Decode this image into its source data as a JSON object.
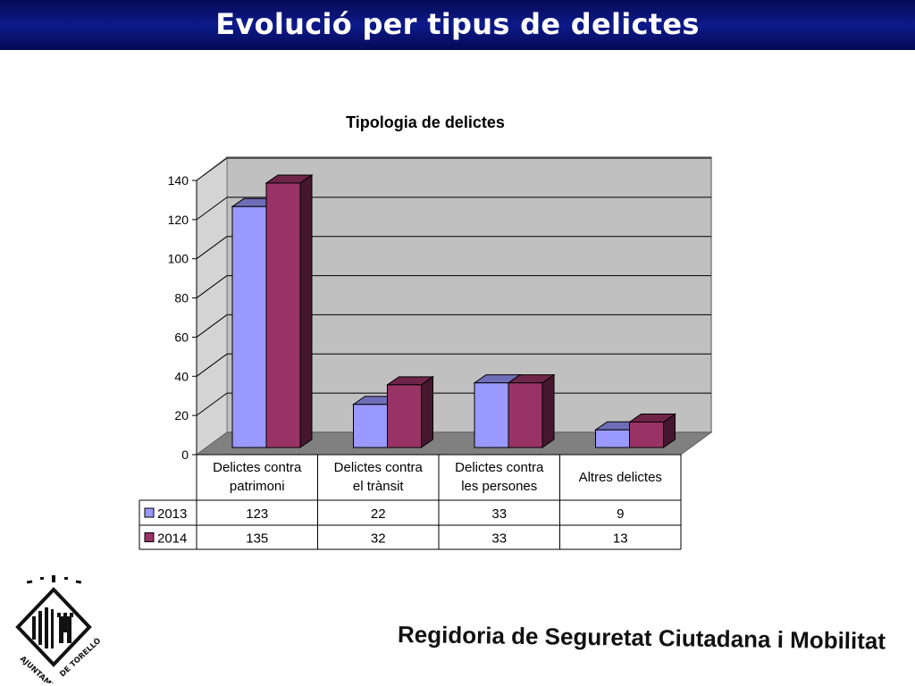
{
  "header": {
    "title": "Evolució per tipus de delictes"
  },
  "footer": {
    "text": "Regidoria de Seguretat Ciutadana i Mobilitat"
  },
  "logo": {
    "text_left": "AJUNTAMENT",
    "text_right": "DE TORELLÓ"
  },
  "colors": {
    "header_bg": "#0d1a8a",
    "series_2013": "#9999ff",
    "series_2014": "#993366",
    "plot_bg": "#c0c0c0",
    "floor": "#808080"
  },
  "chart_data": {
    "type": "bar",
    "title": "Tipologia de delictes",
    "categories": [
      [
        "Delictes contra",
        "patrimoni"
      ],
      [
        "Delictes contra",
        "el trànsit"
      ],
      [
        "Delictes contra",
        "les persones"
      ],
      [
        "Altres delictes"
      ]
    ],
    "series": [
      {
        "name": "2013",
        "values": [
          123,
          22,
          33,
          9
        ],
        "color": "#9999ff"
      },
      {
        "name": "2014",
        "values": [
          135,
          32,
          33,
          13
        ],
        "color": "#993366"
      }
    ],
    "table_values": [
      [
        "123",
        "22",
        "33",
        "9"
      ],
      [
        "135",
        "32",
        "33",
        "13"
      ]
    ],
    "ylim": [
      0,
      140
    ],
    "yticks": [
      0,
      20,
      40,
      60,
      80,
      100,
      120,
      140
    ],
    "grid": true,
    "three_d": true,
    "data_table": true
  }
}
